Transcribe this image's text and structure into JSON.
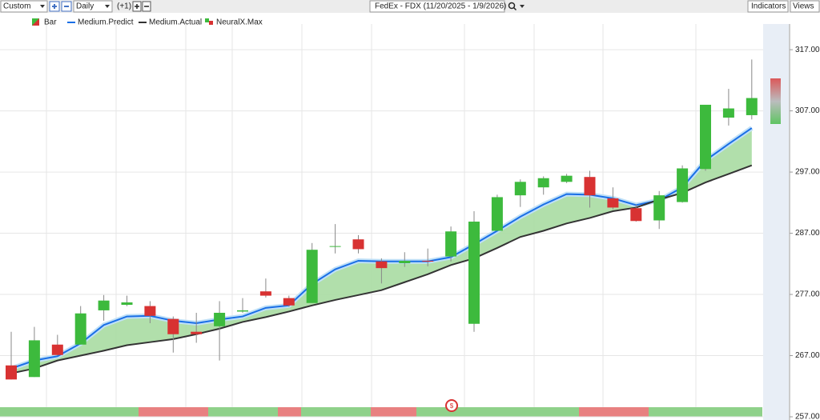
{
  "toolbar": {
    "preset": "Custom",
    "interval": "Daily",
    "offset": "(+1)",
    "indicators": "Indicators",
    "views": "Views"
  },
  "chart_data": {
    "type": "candlestick",
    "title": "FedEx - FDX (11/20/2025 - 1/9/2026)",
    "candle_name": "Bar",
    "indicator_name": "NeuralX.Max",
    "up_color": "#3dba3d",
    "down_color": "#d83232",
    "categories": [
      null,
      null,
      null,
      null,
      null,
      null,
      null,
      null,
      null,
      null,
      null,
      null,
      null,
      null,
      null,
      null,
      null,
      null,
      null,
      null,
      null,
      null,
      null,
      null,
      null,
      null,
      null,
      null,
      null,
      null,
      null,
      null,
      null
    ],
    "open": [
      265.4,
      263.5,
      268.8,
      268.8,
      274.4,
      275.3,
      275.1,
      273.0,
      270.9,
      271.8,
      274.2,
      277.5,
      276.4,
      275.6,
      284.8,
      286.0,
      282.4,
      282.1,
      282.5,
      283.2,
      272.2,
      287.4,
      293.2,
      294.5,
      295.4,
      296.2,
      292.7,
      291.1,
      289.1,
      292.1,
      297.5,
      305.9,
      306.3
    ],
    "close": [
      263.1,
      269.5,
      267.1,
      273.9,
      276.0,
      275.7,
      273.5,
      270.5,
      270.5,
      274.0,
      274.4,
      276.8,
      275.2,
      284.3,
      284.9,
      284.4,
      281.3,
      282.5,
      282.4,
      287.3,
      288.9,
      292.9,
      295.4,
      296.0,
      296.4,
      293.2,
      291.2,
      289.0,
      293.2,
      297.6,
      308.0,
      307.4,
      309.1
    ],
    "high": [
      270.9,
      271.7,
      270.4,
      275.1,
      276.9,
      276.8,
      275.9,
      273.4,
      274.0,
      275.9,
      276.4,
      279.6,
      276.8,
      285.4,
      288.5,
      286.7,
      282.9,
      283.9,
      284.5,
      288.1,
      290.6,
      293.3,
      295.8,
      296.3,
      296.7,
      297.2,
      294.5,
      291.7,
      293.9,
      298.1,
      308.0,
      310.6,
      315.4
    ],
    "low": [
      263.1,
      263.5,
      267.0,
      268.8,
      272.7,
      275.1,
      272.3,
      267.5,
      269.1,
      266.2,
      274.0,
      276.5,
      275.0,
      275.6,
      283.7,
      283.7,
      278.8,
      281.5,
      281.6,
      282.4,
      270.9,
      287.4,
      291.3,
      293.3,
      295.2,
      291.2,
      290.9,
      288.9,
      287.7,
      292.0,
      297.2,
      304.6,
      305.6
    ],
    "series": [
      {
        "name": "Medium.Predict",
        "color": "#1a6fe6",
        "values": [
          264.9,
          266.2,
          266.9,
          269.0,
          272.0,
          273.4,
          273.5,
          272.7,
          272.3,
          272.9,
          273.4,
          274.8,
          275.2,
          278.7,
          281.1,
          282.5,
          282.4,
          282.4,
          282.4,
          283.1,
          285.2,
          287.4,
          289.7,
          291.7,
          293.4,
          293.3,
          292.7,
          291.6,
          292.4,
          294.5,
          298.9,
          301.6,
          304.2
        ]
      },
      {
        "name": "Medium.Actual",
        "color": "#333333",
        "values": [
          264.1,
          264.9,
          266.2,
          267.0,
          267.8,
          268.7,
          269.2,
          269.7,
          270.5,
          271.4,
          272.5,
          273.3,
          274.2,
          275.2,
          276.1,
          276.9,
          277.7,
          279.0,
          280.3,
          281.8,
          282.9,
          284.6,
          286.4,
          287.4,
          288.6,
          289.5,
          290.6,
          291.2,
          292.5,
          293.6,
          295.3,
          296.7,
          298.1
        ]
      }
    ],
    "fill_color": "#a9dca2",
    "ylim": [
      257,
      321.2
    ],
    "yticks": [
      {
        "value": 317,
        "label": "317.00"
      },
      {
        "value": 307,
        "label": "307.00"
      },
      {
        "value": 297,
        "label": "297.00"
      },
      {
        "value": 287,
        "label": "287.00"
      },
      {
        "value": 277,
        "label": "277.00"
      },
      {
        "value": 267,
        "label": "267.00"
      },
      {
        "value": 257,
        "label": "257.00"
      }
    ],
    "grid": true
  }
}
